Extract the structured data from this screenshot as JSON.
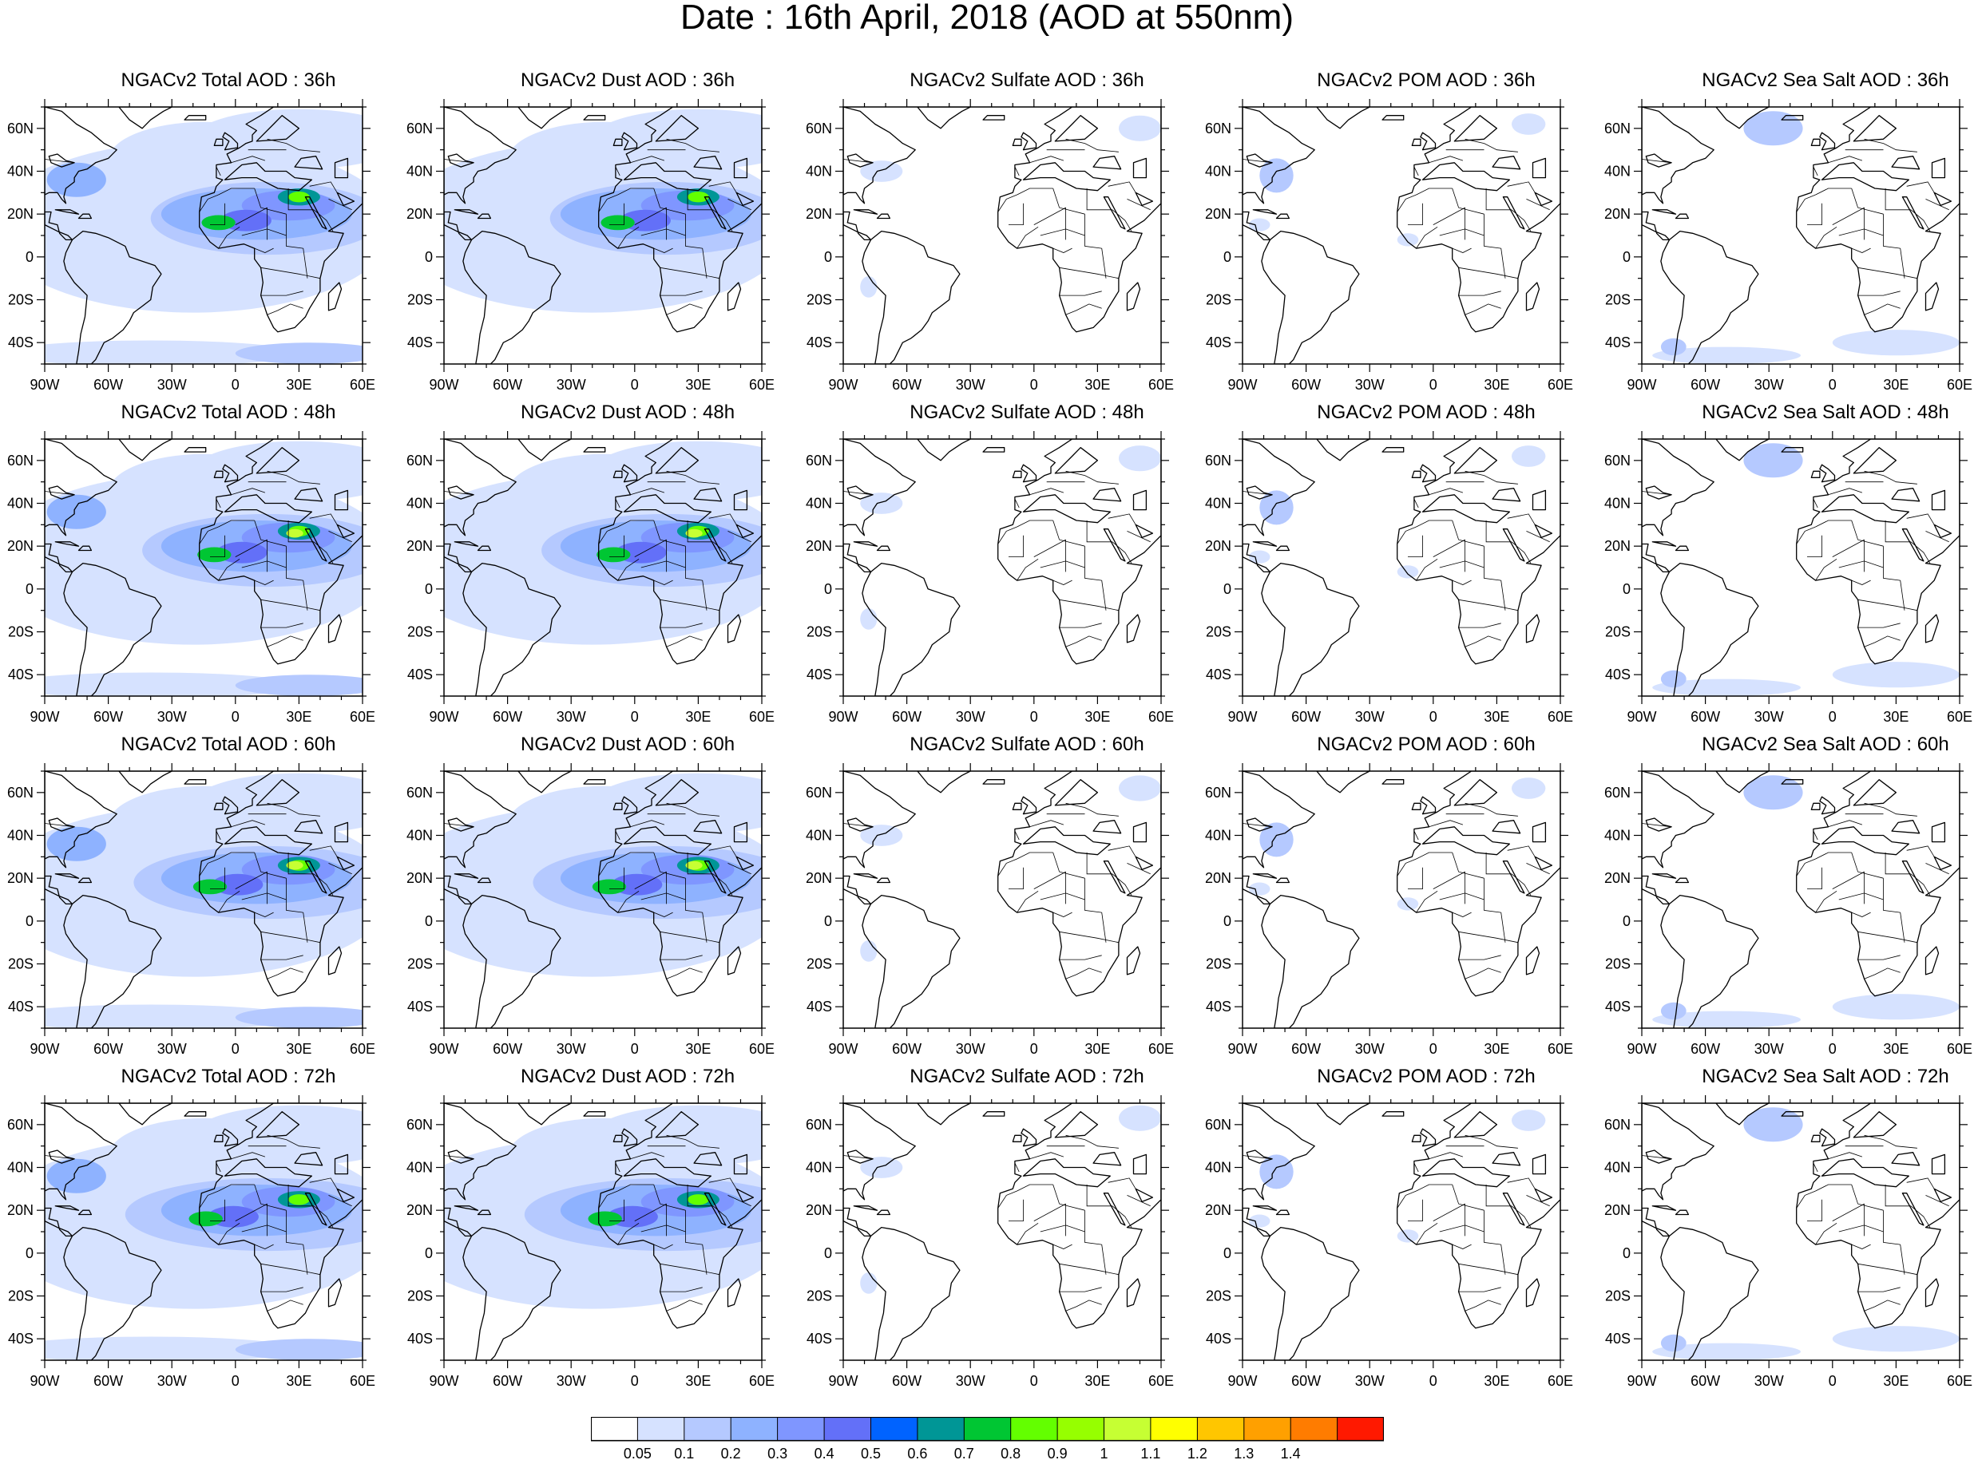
{
  "title": "Date : 16th April, 2018 (AOD at 550nm)",
  "panels": [
    {
      "title": "NGACv2 Total AOD : 36h",
      "species": "total",
      "hour": 36
    },
    {
      "title": "NGACv2 Dust AOD : 36h",
      "species": "dust",
      "hour": 36
    },
    {
      "title": "NGACv2 Sulfate AOD : 36h",
      "species": "sulfate",
      "hour": 36
    },
    {
      "title": "NGACv2 POM AOD : 36h",
      "species": "pom",
      "hour": 36
    },
    {
      "title": "NGACv2 Sea Salt AOD : 36h",
      "species": "seasalt",
      "hour": 36
    },
    {
      "title": "NGACv2 Total AOD : 48h",
      "species": "total",
      "hour": 48
    },
    {
      "title": "NGACv2 Dust AOD : 48h",
      "species": "dust",
      "hour": 48
    },
    {
      "title": "NGACv2 Sulfate AOD : 48h",
      "species": "sulfate",
      "hour": 48
    },
    {
      "title": "NGACv2 POM AOD : 48h",
      "species": "pom",
      "hour": 48
    },
    {
      "title": "NGACv2 Sea Salt AOD : 48h",
      "species": "seasalt",
      "hour": 48
    },
    {
      "title": "NGACv2 Total AOD : 60h",
      "species": "total",
      "hour": 60
    },
    {
      "title": "NGACv2 Dust AOD : 60h",
      "species": "dust",
      "hour": 60
    },
    {
      "title": "NGACv2 Sulfate AOD : 60h",
      "species": "sulfate",
      "hour": 60
    },
    {
      "title": "NGACv2 POM AOD : 60h",
      "species": "pom",
      "hour": 60
    },
    {
      "title": "NGACv2 Sea Salt AOD : 60h",
      "species": "seasalt",
      "hour": 60
    },
    {
      "title": "NGACv2 Total AOD : 72h",
      "species": "total",
      "hour": 72
    },
    {
      "title": "NGACv2 Dust AOD : 72h",
      "species": "dust",
      "hour": 72
    },
    {
      "title": "NGACv2 Sulfate AOD : 72h",
      "species": "sulfate",
      "hour": 72
    },
    {
      "title": "NGACv2 POM AOD : 72h",
      "species": "pom",
      "hour": 72
    },
    {
      "title": "NGACv2 Sea Salt  AOD : 72h",
      "species": "seasalt",
      "hour": 72
    }
  ],
  "map": {
    "lon_range": [
      -90,
      60
    ],
    "lat_range": [
      -50,
      70
    ],
    "lon_ticks": [
      "90W",
      "60W",
      "30W",
      "0",
      "30E",
      "60E"
    ],
    "lat_ticks": [
      "60N",
      "40N",
      "20N",
      "0",
      "20S",
      "40S"
    ]
  },
  "colorbar": {
    "labels": [
      "0.05",
      "0.1",
      "0.2",
      "0.3",
      "0.4",
      "0.5",
      "0.6",
      "0.7",
      "0.8",
      "0.9",
      "1",
      "1.1",
      "1.2",
      "1.3",
      "1.4"
    ],
    "colors": [
      "#ffffff",
      "#d6e2ff",
      "#b5c9ff",
      "#8eb2ff",
      "#7f96ff",
      "#6370f8",
      "#0063ff",
      "#009696",
      "#00c633",
      "#63ff00",
      "#96ff00",
      "#c6ff33",
      "#ffff00",
      "#ffc600",
      "#ffa000",
      "#ff7c00",
      "#ff1900"
    ]
  }
}
